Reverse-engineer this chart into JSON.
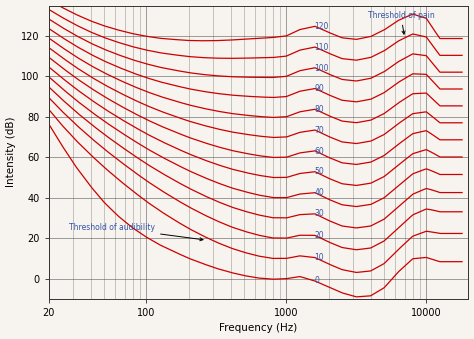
{
  "title": "",
  "xlabel": "Frequency (Hz)",
  "ylabel": "Intensity (dB)",
  "phon_levels": [
    0,
    10,
    20,
    30,
    40,
    50,
    60,
    70,
    80,
    90,
    100,
    110,
    120
  ],
  "xlim": [
    20,
    20000
  ],
  "ylim": [
    -10,
    135
  ],
  "yticks": [
    0,
    20,
    40,
    60,
    80,
    100,
    120
  ],
  "line_color": "#cc0000",
  "label_color": "#3355aa",
  "annotation_color": "#3355aa",
  "background_color": "#f7f3ee",
  "grid_color": "#444444",
  "figsize": [
    4.74,
    3.39
  ],
  "dpi": 100
}
